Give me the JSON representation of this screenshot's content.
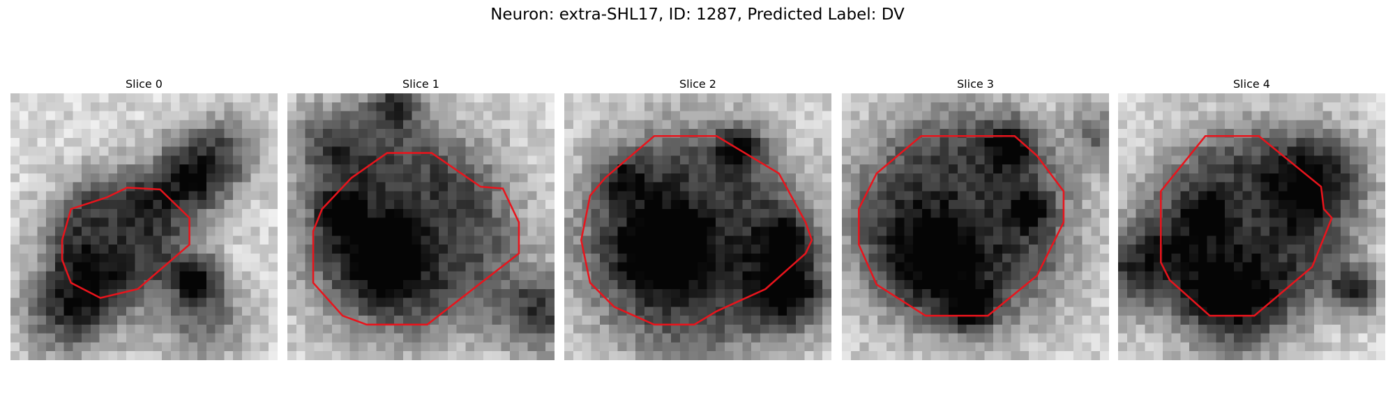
{
  "title": "Neuron: extra-SHL17, ID: 1287, Predicted Label: DV",
  "panels": [
    {
      "title": "Slice 0"
    },
    {
      "title": "Slice 1"
    },
    {
      "title": "Slice 2"
    },
    {
      "title": "Slice 3"
    },
    {
      "title": "Slice 4"
    }
  ]
}
